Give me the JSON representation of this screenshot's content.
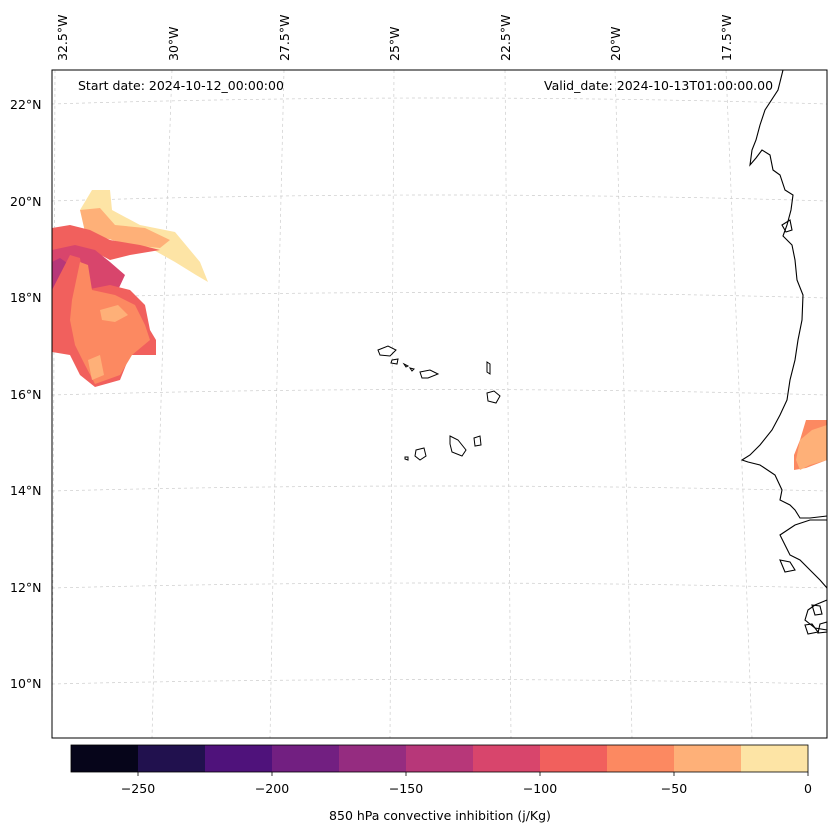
{
  "header": {
    "start_date": "Start date: 2024-10-12_00:00:00",
    "valid_date": "Valid_date: 2024-10-13T01:00:00.00"
  },
  "lon_labels": [
    "32.5°W",
    "30°W",
    "27.5°W",
    "25°W",
    "22.5°W",
    "20°W",
    "17.5°W"
  ],
  "lat_labels": [
    "22°N",
    "20°N",
    "18°N",
    "16°N",
    "14°N",
    "12°N",
    "10°N"
  ],
  "colorbar": {
    "title": "850 hPa convective inhibition (j/Kg)",
    "ticks": [
      "−250",
      "−200",
      "−150",
      "−100",
      "−50",
      "0"
    ],
    "levels": [
      -275,
      -250,
      -225,
      -200,
      -175,
      -150,
      -125,
      -100,
      -75,
      -50,
      -25,
      0
    ],
    "colors": [
      "#06051a",
      "#21114e",
      "#4f127b",
      "#721f81",
      "#952c80",
      "#b73779",
      "#d8456c",
      "#f1605d",
      "#fc8961",
      "#feb078",
      "#fde4a5"
    ]
  }
}
